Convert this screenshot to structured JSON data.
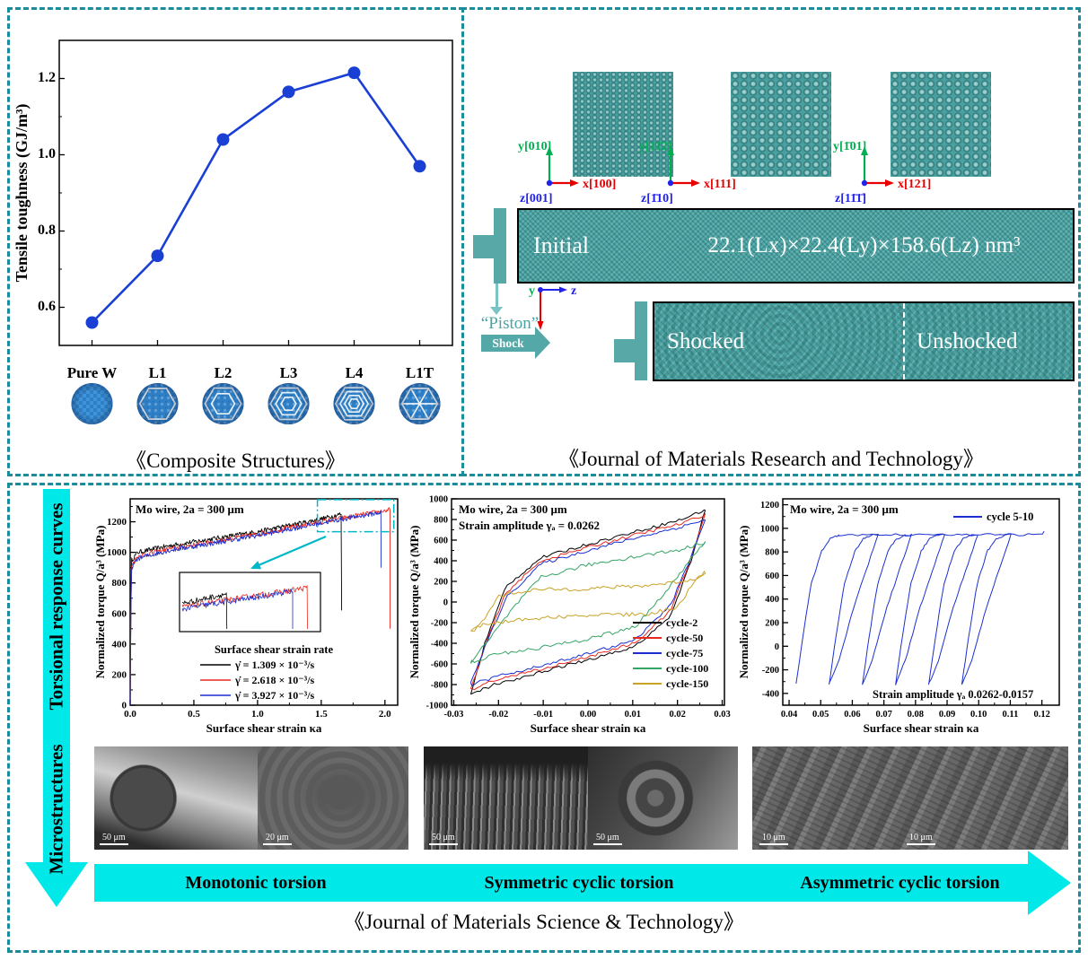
{
  "page": {
    "border_color": "#1a8c9c",
    "accent_cyan": "#00e8e8",
    "teal": "#4aa3a3"
  },
  "top_left": {
    "title": "《Composite Structures》",
    "specimens": [
      {
        "label": "Pure W",
        "rings": 0,
        "spokes": false
      },
      {
        "label": "L1",
        "rings": 1,
        "spokes": false
      },
      {
        "label": "L2",
        "rings": 2,
        "spokes": false
      },
      {
        "label": "L3",
        "rings": 3,
        "spokes": false
      },
      {
        "label": "L4",
        "rings": 4,
        "spokes": false
      },
      {
        "label": "L1T",
        "rings": 1,
        "spokes": true
      }
    ]
  },
  "top_right": {
    "title": "《Journal of Materials Research and Technology》",
    "orientations": [
      {
        "y": "y[010]",
        "x": "x[100]",
        "z": "z[001]"
      },
      {
        "y": "y[11̄2]",
        "x": "x[111]",
        "z": "z[1̄10]"
      },
      {
        "y": "y[1̄01]",
        "x": "x[121]",
        "z": "z[11̄1̄]"
      }
    ],
    "initial": {
      "label": "Initial",
      "dimensions": "22.1(Lx)×22.4(Ly)×158.6(Lz) nm³"
    },
    "mini_axes": {
      "y": "y",
      "z": "z",
      "x": "x"
    },
    "piston": "“Piston”",
    "shock": "Shock",
    "shocked": "Shocked",
    "unshocked": "Unshocked"
  },
  "bottom": {
    "left_arrow_labels": [
      "Torsional response curves",
      "Microstructures"
    ],
    "process_labels": [
      "Monotonic torsion",
      "Symmetric cyclic torsion",
      "Asymmetric cyclic torsion"
    ],
    "title": "《Journal of Materials Science & Technology》",
    "sem": [
      {
        "scale": "50 μm"
      },
      {
        "scale": "20 μm"
      },
      {
        "scale": "50 μm"
      },
      {
        "scale": "50 μm"
      },
      {
        "scale": "10 μm",
        "scale2": "10 μm"
      }
    ]
  },
  "chart_data": [
    {
      "id": "toughness",
      "type": "line",
      "title": "",
      "xlabel": "",
      "ylabel": "Tensile toughness (GJ/m³)",
      "categories": [
        "Pure W",
        "L1",
        "L2",
        "L3",
        "L4",
        "L1T"
      ],
      "values": [
        0.56,
        0.735,
        1.04,
        1.165,
        1.215,
        0.97
      ],
      "ylim": [
        0.5,
        1.3
      ],
      "yticks": [
        0.6,
        0.8,
        1.0,
        1.2
      ],
      "ytick_labels": [
        "0.6",
        "0.8",
        "1.0",
        "1.2"
      ],
      "color": "#1a3fd4"
    },
    {
      "id": "monotonic",
      "type": "line",
      "title": "Mo wire, 2a = 300 μm",
      "xlabel": "Surface shear strain κa",
      "ylabel": "Normalized torque Q/a³ (MPa)",
      "xlim": [
        0,
        2.1
      ],
      "ylim": [
        0,
        1350
      ],
      "xticks": [
        0,
        0.5,
        1.0,
        1.5,
        2.0
      ],
      "xtick_labels": [
        "0.0",
        "0.5",
        "1.0",
        "1.5",
        "2.0"
      ],
      "yticks": [
        0,
        200,
        400,
        600,
        800,
        1000,
        1200
      ],
      "legend_title": "Surface shear strain rate",
      "series": [
        {
          "name": "γ̇ = 1.309 × 10⁻³/s",
          "color": "#000000",
          "anchors": [
            [
              0,
              0
            ],
            [
              0.004,
              640
            ],
            [
              0.012,
              950
            ],
            [
              0.06,
              1000
            ],
            [
              0.3,
              1042
            ],
            [
              0.6,
              1082
            ],
            [
              1.0,
              1135
            ],
            [
              1.5,
              1218
            ],
            [
              1.66,
              1252
            ]
          ],
          "fracture": {
            "x": 1.66,
            "drop_to": 620
          }
        },
        {
          "name": "γ̇ = 2.618 × 10⁻³/s",
          "color": "#e8281e",
          "anchors": [
            [
              0,
              0
            ],
            [
              0.004,
              600
            ],
            [
              0.012,
              915
            ],
            [
              0.06,
              975
            ],
            [
              0.3,
              1022
            ],
            [
              0.6,
              1062
            ],
            [
              1.0,
              1120
            ],
            [
              1.5,
              1200
            ],
            [
              2.04,
              1278
            ]
          ],
          "fracture": {
            "x": 2.04,
            "drop_to": 500
          }
        },
        {
          "name": "γ̇ = 3.927 × 10⁻³/s",
          "color": "#1b2fd0",
          "anchors": [
            [
              0,
              0
            ],
            [
              0.004,
              580
            ],
            [
              0.012,
              900
            ],
            [
              0.06,
              960
            ],
            [
              0.3,
              1012
            ],
            [
              0.6,
              1052
            ],
            [
              1.0,
              1110
            ],
            [
              1.5,
              1192
            ],
            [
              1.97,
              1262
            ]
          ],
          "fracture": {
            "x": 1.97,
            "drop_to": 900
          }
        }
      ],
      "zoom_region": {
        "x0": 1.47,
        "x1": 2.07,
        "y0": 1135,
        "y1": 1345
      }
    },
    {
      "id": "symmetric",
      "type": "line",
      "title": "Mo wire, 2a = 300 μm",
      "subtitle": "Strain amplitude γₐ = 0.0262",
      "xlabel": "Surface shear strain κa",
      "ylabel": "Normalized torque Q/a³ (MPa)",
      "xlim": [
        -0.0305,
        0.0305
      ],
      "ylim": [
        -1000,
        1000
      ],
      "xticks": [
        -0.03,
        -0.02,
        -0.01,
        0,
        0.01,
        0.02,
        0.03
      ],
      "xtick_labels": [
        "-0.03",
        "-0.02",
        "-0.01",
        "0.00",
        "0.01",
        "0.02",
        "0.03"
      ],
      "yticks": [
        -1000,
        -800,
        -600,
        -400,
        -200,
        0,
        200,
        400,
        600,
        800,
        1000
      ],
      "strain_amplitude": 0.0262,
      "series": [
        {
          "name": "cycle-2",
          "color": "#000000",
          "peak": 895,
          "upper": [
            [
              0,
              -895
            ],
            [
              0.06,
              -400
            ],
            [
              0.15,
              150
            ],
            [
              0.3,
              430
            ],
            [
              0.5,
              560
            ],
            [
              0.7,
              680
            ],
            [
              0.9,
              800
            ],
            [
              1,
              895
            ]
          ]
        },
        {
          "name": "cycle-50",
          "color": "#e8281e",
          "peak": 850,
          "upper": [
            [
              0,
              -850
            ],
            [
              0.06,
              -430
            ],
            [
              0.15,
              90
            ],
            [
              0.3,
              400
            ],
            [
              0.5,
              530
            ],
            [
              0.7,
              650
            ],
            [
              0.9,
              760
            ],
            [
              1,
              850
            ]
          ]
        },
        {
          "name": "cycle-75",
          "color": "#1b2fd0",
          "peak": 800,
          "upper": [
            [
              0,
              -790
            ],
            [
              0.06,
              -440
            ],
            [
              0.15,
              40
            ],
            [
              0.3,
              370
            ],
            [
              0.5,
              500
            ],
            [
              0.7,
              620
            ],
            [
              0.9,
              730
            ],
            [
              1,
              800
            ]
          ]
        },
        {
          "name": "cycle-100",
          "color": "#35a566",
          "peak": 585,
          "upper": [
            [
              0,
              -585
            ],
            [
              0.07,
              -390
            ],
            [
              0.18,
              -60
            ],
            [
              0.3,
              240
            ],
            [
              0.5,
              360
            ],
            [
              0.7,
              440
            ],
            [
              0.9,
              510
            ],
            [
              1,
              585
            ]
          ]
        },
        {
          "name": "cycle-150",
          "color": "#c9a227",
          "peak": 295,
          "upper": [
            [
              0,
              -295
            ],
            [
              0.05,
              -190
            ],
            [
              0.12,
              60
            ],
            [
              0.25,
              115
            ],
            [
              0.5,
              130
            ],
            [
              0.75,
              160
            ],
            [
              0.95,
              215
            ],
            [
              1,
              290
            ]
          ]
        }
      ]
    },
    {
      "id": "asymmetric",
      "type": "line",
      "title": "Mo wire, 2a = 300 μm",
      "annotation": "Strain amplitude γₐ 0.0262-0.0157",
      "legend": "cycle 5-10",
      "xlabel": "Surface shear strain κa",
      "ylabel": "Normalized torque Q/a³ (MPa)",
      "xlim": [
        0.038,
        0.1255
      ],
      "ylim": [
        -500,
        1250
      ],
      "xticks": [
        0.04,
        0.05,
        0.06,
        0.07,
        0.08,
        0.09,
        0.1,
        0.11,
        0.12
      ],
      "xtick_labels": [
        "0.04",
        "0.05",
        "0.06",
        "0.07",
        "0.08",
        "0.09",
        "0.10",
        "0.11",
        "0.12"
      ],
      "yticks": [
        -400,
        -200,
        0,
        200,
        400,
        600,
        800,
        1000,
        1200
      ],
      "color": "#1b2fd0",
      "min_torque": -320,
      "max_torque": 945,
      "rise_width": 0.0135,
      "rise_profile": [
        [
          0,
          -320
        ],
        [
          0.15,
          60
        ],
        [
          0.35,
          520
        ],
        [
          0.6,
          810
        ],
        [
          0.8,
          910
        ],
        [
          1,
          940
        ]
      ],
      "unload_profile": [
        [
          0,
          945
        ],
        [
          0.25,
          640
        ],
        [
          0.5,
          330
        ],
        [
          0.8,
          -120
        ],
        [
          1,
          -320
        ]
      ],
      "loops": [
        {
          "start": 0.0422,
          "plateau_end": 0.0682
        },
        {
          "start": 0.0527,
          "plateau_end": 0.0787
        },
        {
          "start": 0.0632,
          "plateau_end": 0.0892
        },
        {
          "start": 0.0737,
          "plateau_end": 0.0997
        },
        {
          "start": 0.0842,
          "plateau_end": 0.1102
        },
        {
          "start": 0.0947,
          "plateau_end": 0.1207
        }
      ]
    }
  ]
}
